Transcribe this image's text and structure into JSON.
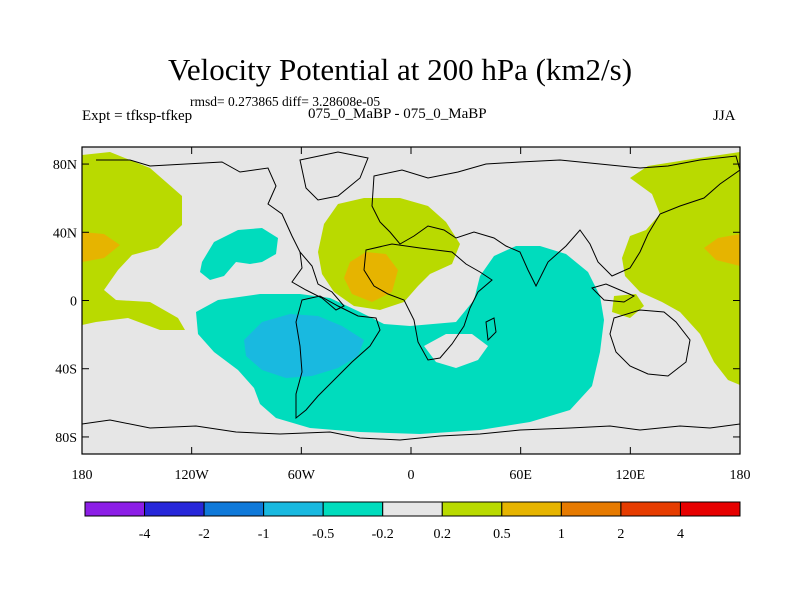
{
  "title": "Velocity Potential at 200 hPa (km2/s)",
  "stats": "rmsd= 0.273865  diff= 3.28608e-05",
  "experiment": "Expt = tfksp-tfkep",
  "case": "075_0_MaBP - 075_0_MaBP",
  "season": "JJA",
  "axes": {
    "x_ticks": [
      {
        "value": -180,
        "label": "180"
      },
      {
        "value": -120,
        "label": "120W"
      },
      {
        "value": -60,
        "label": "60W"
      },
      {
        "value": 0,
        "label": "0"
      },
      {
        "value": 60,
        "label": "60E"
      },
      {
        "value": 120,
        "label": "120E"
      },
      {
        "value": 180,
        "label": "180"
      }
    ],
    "y_ticks": [
      {
        "value": 80,
        "label": "80N"
      },
      {
        "value": 40,
        "label": "40N"
      },
      {
        "value": 0,
        "label": "0"
      },
      {
        "value": -40,
        "label": "40S"
      },
      {
        "value": -80,
        "label": "80S"
      }
    ]
  },
  "colorbar": {
    "colors": [
      "#8c1ee6",
      "#2727d9",
      "#0f79d9",
      "#19b9e0",
      "#00dcbd",
      "#e6e6e6",
      "#b9da00",
      "#e6b400",
      "#e67a00",
      "#e63c00",
      "#e60000"
    ],
    "labels": [
      "-4",
      "-2",
      "-1",
      "-0.5",
      "-0.2",
      "0.2",
      "0.5",
      "1",
      "2",
      "4"
    ]
  },
  "legend_fill": {
    "neutral": "#e6e6e6",
    "pos_02": "#b9da00",
    "pos_05": "#e6b400",
    "neg_02": "#00dcbd",
    "neg_05": "#19b9e0"
  }
}
